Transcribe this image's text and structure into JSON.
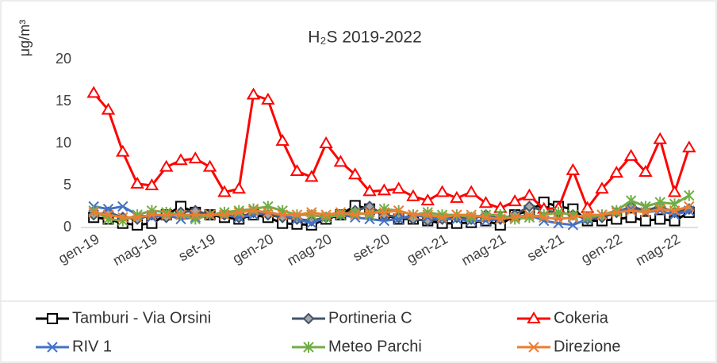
{
  "chart_data": {
    "type": "line",
    "title": "H₂S 2019-2022",
    "y_label": "μg/m³",
    "categories": [
      "gen-19",
      null,
      null,
      null,
      "mag-19",
      null,
      null,
      null,
      "set-19",
      null,
      null,
      null,
      "gen-20",
      null,
      null,
      null,
      "mag-20",
      null,
      null,
      null,
      "set-20",
      null,
      null,
      null,
      "gen-21",
      null,
      null,
      null,
      "mag-21",
      null,
      null,
      null,
      "set-21",
      null,
      null,
      null,
      "gen-22",
      null,
      null,
      null,
      "mag-22",
      null
    ],
    "ylim": [
      0,
      20
    ],
    "yticks": [
      0,
      5,
      10,
      15,
      20
    ],
    "grid": false,
    "legend": "bottom",
    "series": [
      {
        "name": "Tamburi - Via Orsini",
        "color": "#000000",
        "marker": "square",
        "values": [
          1.2,
          1.0,
          0.5,
          0.3,
          0.5,
          1.5,
          2.5,
          1.8,
          1.5,
          1.2,
          1.0,
          1.5,
          1.2,
          0.5,
          0.4,
          0.3,
          1.0,
          1.5,
          2.6,
          2.2,
          1.5,
          1.0,
          1.0,
          0.8,
          0.5,
          0.5,
          0.6,
          0.8,
          0.3,
          1.5,
          2.0,
          3.0,
          2.5,
          2.2,
          0.8,
          0.8,
          1.0,
          1.2,
          0.8,
          1.0,
          0.8,
          1.8
        ]
      },
      {
        "name": "Portineria C",
        "color": "#44546a",
        "marker": "diamond",
        "values": [
          1.5,
          1.8,
          1.2,
          1.0,
          1.5,
          1.2,
          1.8,
          2.0,
          1.5,
          1.5,
          1.2,
          1.8,
          1.5,
          1.2,
          1.0,
          0.8,
          1.2,
          1.5,
          2.0,
          2.5,
          1.5,
          1.2,
          1.0,
          0.8,
          1.0,
          1.2,
          1.0,
          1.5,
          1.0,
          1.5,
          2.5,
          2.0,
          1.8,
          1.5,
          1.0,
          1.2,
          1.8,
          2.5,
          2.0,
          2.5,
          1.8,
          2.2
        ]
      },
      {
        "name": "Cokeria",
        "color": "#ff0000",
        "marker": "triangle",
        "values": [
          16,
          14,
          9,
          5.2,
          5,
          7.2,
          8,
          8.2,
          7.2,
          4.2,
          4.6,
          15.8,
          15.2,
          10.3,
          6.7,
          6,
          10,
          7.8,
          6.3,
          4.3,
          4.4,
          4.6,
          3.7,
          3.2,
          4.2,
          3.5,
          4.2,
          2.9,
          2.3,
          3.1,
          3.8,
          2.2,
          2.3,
          6.8,
          2.3,
          4.6,
          6.5,
          8.5,
          6.6,
          10.5,
          4.2,
          9.5
        ]
      },
      {
        "name": "RIV 1",
        "color": "#4472c4",
        "marker": "x",
        "values": [
          2.5,
          2.2,
          2.5,
          1.5,
          1.2,
          1.5,
          1.0,
          1.2,
          1.5,
          1.5,
          1.2,
          1.5,
          1.8,
          1.5,
          1.0,
          0.5,
          1.2,
          1.5,
          1.2,
          1.0,
          0.8,
          1.0,
          1.5,
          1.2,
          1.0,
          1.0,
          0.8,
          0.8,
          1.0,
          1.2,
          1.5,
          0.8,
          0.5,
          0.3,
          1.0,
          1.5,
          2.0,
          2.2,
          1.8,
          2.0,
          1.5,
          2.0
        ]
      },
      {
        "name": "Meteo Parchi",
        "color": "#70ad47",
        "marker": "star",
        "values": [
          2.0,
          1.0,
          0.8,
          1.5,
          2.0,
          1.8,
          1.5,
          1.0,
          1.5,
          1.8,
          2.0,
          2.2,
          2.5,
          2.0,
          1.5,
          1.5,
          1.2,
          1.5,
          1.8,
          1.5,
          2.2,
          2.0,
          1.5,
          1.8,
          1.5,
          1.5,
          1.2,
          1.5,
          1.5,
          1.0,
          1.2,
          1.5,
          1.8,
          1.5,
          1.2,
          1.5,
          2.0,
          3.2,
          2.5,
          3.0,
          2.8,
          3.8
        ]
      },
      {
        "name": "Direzione",
        "color": "#ed7d31",
        "marker": "x",
        "values": [
          1.8,
          1.5,
          1.2,
          1.2,
          1.5,
          1.5,
          1.5,
          1.5,
          1.5,
          1.5,
          1.8,
          2.0,
          1.8,
          1.5,
          1.5,
          1.8,
          1.5,
          1.8,
          1.5,
          1.8,
          1.8,
          2.0,
          1.5,
          1.5,
          1.2,
          1.5,
          1.5,
          1.2,
          1.0,
          1.2,
          1.5,
          1.2,
          1.0,
          1.2,
          1.5,
          1.5,
          1.8,
          2.0,
          1.8,
          2.2,
          2.0,
          2.5
        ]
      }
    ]
  }
}
